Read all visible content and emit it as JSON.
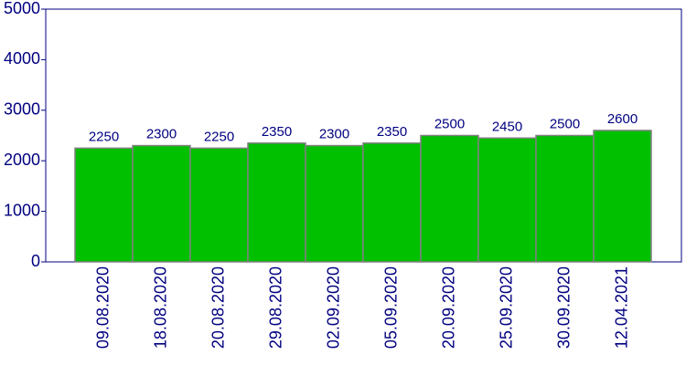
{
  "chart_data": {
    "type": "bar",
    "categories": [
      "09.08.2020",
      "18.08.2020",
      "20.08.2020",
      "29.08.2020",
      "02.09.2020",
      "05.09.2020",
      "20.09.2020",
      "25.09.2020",
      "30.09.2020",
      "12.04.2021"
    ],
    "values": [
      2250,
      2300,
      2250,
      2350,
      2300,
      2350,
      2500,
      2450,
      2500,
      2600
    ],
    "color": "#00c000",
    "ylim": [
      0,
      5000
    ],
    "yticks": [
      0,
      1000,
      2000,
      3000,
      4000,
      5000
    ],
    "grid": false
  }
}
